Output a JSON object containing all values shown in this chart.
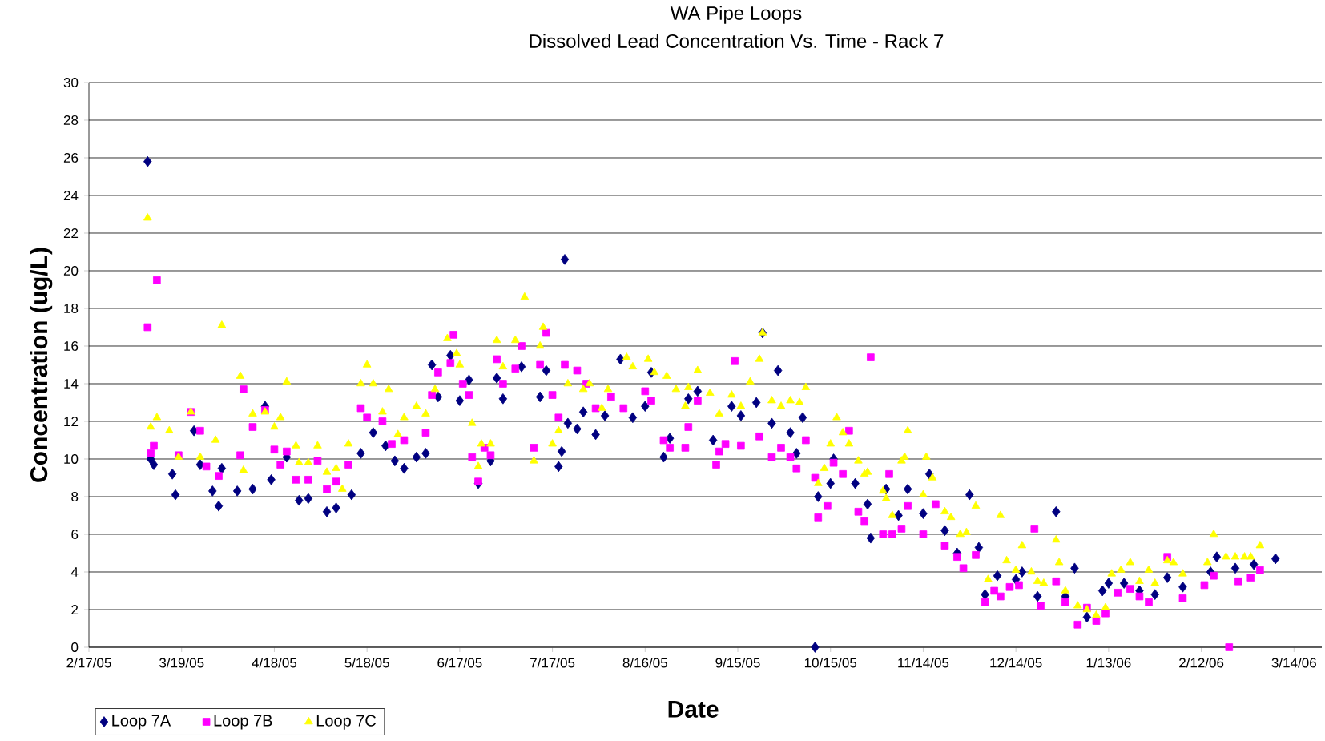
{
  "chart_data": {
    "type": "scatter",
    "title": "WA Pipe Loops",
    "subtitle": "Dissolved Lead Concentration Vs. Time - Rack 7",
    "xlabel": "Date",
    "ylabel": "Concentration (ug/L)",
    "xlim": [
      "2005-02-17",
      "2006-03-23"
    ],
    "xticks": [
      {
        "value": "2005-02-17",
        "label": "2/17/05"
      },
      {
        "value": "2005-03-19",
        "label": "3/19/05"
      },
      {
        "value": "2005-04-18",
        "label": "4/18/05"
      },
      {
        "value": "2005-05-18",
        "label": "5/18/05"
      },
      {
        "value": "2005-06-17",
        "label": "6/17/05"
      },
      {
        "value": "2005-07-17",
        "label": "7/17/05"
      },
      {
        "value": "2005-08-16",
        "label": "8/16/05"
      },
      {
        "value": "2005-09-15",
        "label": "9/15/05"
      },
      {
        "value": "2005-10-15",
        "label": "10/15/05"
      },
      {
        "value": "2005-11-14",
        "label": "11/14/05"
      },
      {
        "value": "2005-12-14",
        "label": "12/14/05"
      },
      {
        "value": "2006-01-13",
        "label": "1/13/06"
      },
      {
        "value": "2006-02-12",
        "label": "2/12/06"
      },
      {
        "value": "2006-03-14",
        "label": "3/14/06"
      }
    ],
    "ylim": [
      0,
      30
    ],
    "yticks": [
      0,
      2,
      4,
      6,
      8,
      10,
      12,
      14,
      16,
      18,
      20,
      22,
      24,
      26,
      28,
      30
    ],
    "grid": "y",
    "legend": "bottom left",
    "series": [
      {
        "name": "Loop 7A",
        "color": "#000080",
        "marker": "diamond",
        "x": [
          "2005-03-08",
          "2005-03-09",
          "2005-03-10",
          "2005-03-16",
          "2005-03-17",
          "2005-03-23",
          "2005-03-25",
          "2005-03-29",
          "2005-03-31",
          "2005-04-01",
          "2005-04-06",
          "2005-04-11",
          "2005-04-15",
          "2005-04-17",
          "2005-04-22",
          "2005-04-26",
          "2005-04-29",
          "2005-05-05",
          "2005-05-08",
          "2005-05-13",
          "2005-05-16",
          "2005-05-20",
          "2005-05-24",
          "2005-05-27",
          "2005-05-30",
          "2005-06-03",
          "2005-06-06",
          "2005-06-08",
          "2005-06-10",
          "2005-06-14",
          "2005-06-17",
          "2005-06-20",
          "2005-06-23",
          "2005-06-27",
          "2005-06-29",
          "2005-07-01",
          "2005-07-07",
          "2005-07-13",
          "2005-07-15",
          "2005-07-19",
          "2005-07-20",
          "2005-07-21",
          "2005-07-22",
          "2005-07-25",
          "2005-07-27",
          "2005-07-31",
          "2005-08-03",
          "2005-08-08",
          "2005-08-12",
          "2005-08-16",
          "2005-08-18",
          "2005-08-22",
          "2005-08-24",
          "2005-08-30",
          "2005-09-02",
          "2005-09-07",
          "2005-09-13",
          "2005-09-16",
          "2005-09-21",
          "2005-09-23",
          "2005-09-26",
          "2005-09-28",
          "2005-10-02",
          "2005-10-04",
          "2005-10-06",
          "2005-10-10",
          "2005-10-11",
          "2005-10-15",
          "2005-10-16",
          "2005-10-23",
          "2005-10-27",
          "2005-10-28",
          "2005-11-02",
          "2005-11-06",
          "2005-11-09",
          "2005-11-14",
          "2005-11-16",
          "2005-11-21",
          "2005-11-25",
          "2005-11-29",
          "2005-12-02",
          "2005-12-04",
          "2005-12-08",
          "2005-12-14",
          "2005-12-16",
          "2005-12-21",
          "2005-12-27",
          "2005-12-30",
          "2006-01-02",
          "2006-01-06",
          "2006-01-11",
          "2006-01-13",
          "2006-01-18",
          "2006-01-23",
          "2006-01-28",
          "2006-02-01",
          "2006-02-06",
          "2006-02-15",
          "2006-02-17",
          "2006-02-23",
          "2006-03-01",
          "2006-03-08"
        ],
        "values": [
          25.8,
          10.0,
          9.7,
          9.2,
          8.1,
          11.5,
          9.7,
          8.3,
          7.5,
          9.5,
          8.3,
          8.4,
          12.8,
          8.9,
          10.1,
          7.8,
          7.9,
          7.2,
          7.4,
          8.1,
          10.3,
          11.4,
          10.7,
          9.9,
          9.5,
          10.1,
          10.3,
          15.0,
          13.3,
          15.5,
          13.1,
          14.2,
          8.7,
          9.9,
          14.3,
          13.2,
          14.9,
          13.3,
          14.7,
          9.6,
          10.4,
          20.6,
          11.9,
          11.6,
          12.5,
          11.3,
          12.3,
          15.3,
          12.2,
          12.8,
          14.6,
          10.1,
          11.1,
          13.2,
          13.6,
          11.0,
          12.8,
          12.3,
          13.0,
          16.7,
          11.9,
          14.7,
          11.4,
          10.3,
          12.2,
          0,
          8.0,
          8.7,
          10.0,
          8.7,
          7.6,
          5.8,
          8.4,
          7.0,
          8.4,
          7.1,
          9.2,
          6.2,
          5.0,
          8.1,
          5.3,
          2.8,
          3.8,
          3.6,
          4.0,
          2.7,
          7.2,
          2.7,
          4.2,
          1.6,
          3.0,
          3.4,
          3.4,
          3.0,
          2.8,
          3.7,
          3.2,
          4.0,
          4.8,
          4.2,
          4.4,
          4.7
        ]
      },
      {
        "name": "Loop 7B",
        "color": "#ff00ff",
        "marker": "square",
        "x": [
          "2005-03-08",
          "2005-03-09",
          "2005-03-10",
          "2005-03-11",
          "2005-03-18",
          "2005-03-22",
          "2005-03-25",
          "2005-03-27",
          "2005-03-31",
          "2005-04-07",
          "2005-04-08",
          "2005-04-11",
          "2005-04-15",
          "2005-04-18",
          "2005-04-20",
          "2005-04-22",
          "2005-04-25",
          "2005-04-29",
          "2005-05-02",
          "2005-05-05",
          "2005-05-08",
          "2005-05-12",
          "2005-05-16",
          "2005-05-18",
          "2005-05-23",
          "2005-05-26",
          "2005-05-30",
          "2005-06-06",
          "2005-06-08",
          "2005-06-10",
          "2005-06-14",
          "2005-06-15",
          "2005-06-18",
          "2005-06-20",
          "2005-06-21",
          "2005-06-23",
          "2005-06-25",
          "2005-06-27",
          "2005-06-29",
          "2005-07-01",
          "2005-07-05",
          "2005-07-07",
          "2005-07-11",
          "2005-07-13",
          "2005-07-15",
          "2005-07-17",
          "2005-07-19",
          "2005-07-21",
          "2005-07-25",
          "2005-07-28",
          "2005-07-31",
          "2005-08-05",
          "2005-08-09",
          "2005-08-16",
          "2005-08-18",
          "2005-08-22",
          "2005-08-24",
          "2005-08-29",
          "2005-08-30",
          "2005-09-02",
          "2005-09-08",
          "2005-09-09",
          "2005-09-11",
          "2005-09-14",
          "2005-09-16",
          "2005-09-22",
          "2005-09-26",
          "2005-09-29",
          "2005-10-02",
          "2005-10-04",
          "2005-10-07",
          "2005-10-10",
          "2005-10-11",
          "2005-10-14",
          "2005-10-16",
          "2005-10-19",
          "2005-10-21",
          "2005-10-24",
          "2005-10-26",
          "2005-10-28",
          "2005-11-01",
          "2005-11-03",
          "2005-11-04",
          "2005-11-07",
          "2005-11-09",
          "2005-11-14",
          "2005-11-18",
          "2005-11-21",
          "2005-11-25",
          "2005-11-27",
          "2005-12-01",
          "2005-12-04",
          "2005-12-07",
          "2005-12-09",
          "2005-12-12",
          "2005-12-15",
          "2005-12-20",
          "2005-12-22",
          "2005-12-27",
          "2005-12-30",
          "2006-01-03",
          "2006-01-06",
          "2006-01-09",
          "2006-01-12",
          "2006-01-16",
          "2006-01-20",
          "2006-01-23",
          "2006-01-26",
          "2006-02-01",
          "2006-02-06",
          "2006-02-13",
          "2006-02-16",
          "2006-02-21",
          "2006-02-24",
          "2006-02-28",
          "2006-03-03"
        ],
        "values": [
          17.0,
          10.3,
          10.7,
          19.5,
          10.2,
          12.5,
          11.5,
          9.6,
          9.1,
          10.2,
          13.7,
          11.7,
          12.6,
          10.5,
          9.7,
          10.4,
          8.9,
          8.9,
          9.9,
          8.4,
          8.8,
          9.7,
          12.7,
          12.2,
          12.0,
          10.8,
          11.0,
          11.4,
          13.4,
          14.6,
          15.1,
          16.6,
          14.0,
          13.4,
          10.1,
          8.8,
          10.6,
          10.2,
          15.3,
          14.0,
          14.8,
          16.0,
          10.6,
          15.0,
          16.7,
          13.4,
          12.2,
          15.0,
          14.7,
          14.0,
          12.7,
          13.3,
          12.7,
          13.6,
          13.1,
          11.0,
          10.6,
          10.6,
          11.7,
          13.1,
          9.7,
          10.4,
          10.8,
          15.2,
          10.7,
          11.2,
          10.1,
          10.6,
          10.1,
          9.5,
          11.0,
          9.0,
          6.9,
          7.5,
          9.8,
          9.2,
          11.5,
          7.2,
          6.7,
          15.4,
          6.0,
          9.2,
          6.0,
          6.3,
          7.5,
          6.0,
          7.6,
          5.4,
          4.8,
          4.2,
          4.9,
          2.4,
          3.0,
          2.7,
          3.2,
          3.3,
          6.3,
          2.2,
          3.5,
          2.4,
          1.2,
          2.1,
          1.4,
          1.8,
          2.9,
          3.1,
          2.7,
          2.4,
          4.8,
          2.6,
          3.3,
          3.8,
          0,
          3.5,
          3.7,
          4.1
        ]
      },
      {
        "name": "Loop 7C",
        "color": "#ffff00",
        "marker": "triangle",
        "x": [
          "2005-03-08",
          "2005-03-09",
          "2005-03-11",
          "2005-03-15",
          "2005-03-18",
          "2005-03-22",
          "2005-03-25",
          "2005-03-30",
          "2005-04-01",
          "2005-04-07",
          "2005-04-08",
          "2005-04-11",
          "2005-04-15",
          "2005-04-18",
          "2005-04-20",
          "2005-04-22",
          "2005-04-25",
          "2005-04-26",
          "2005-04-29",
          "2005-05-02",
          "2005-05-05",
          "2005-05-08",
          "2005-05-10",
          "2005-05-12",
          "2005-05-16",
          "2005-05-18",
          "2005-05-20",
          "2005-05-23",
          "2005-05-25",
          "2005-05-28",
          "2005-05-30",
          "2005-06-03",
          "2005-06-06",
          "2005-06-09",
          "2005-06-13",
          "2005-06-16",
          "2005-06-17",
          "2005-06-21",
          "2005-06-23",
          "2005-06-24",
          "2005-06-27",
          "2005-06-29",
          "2005-07-01",
          "2005-07-05",
          "2005-07-08",
          "2005-07-11",
          "2005-07-13",
          "2005-07-14",
          "2005-07-17",
          "2005-07-19",
          "2005-07-22",
          "2005-07-27",
          "2005-07-29",
          "2005-08-02",
          "2005-08-04",
          "2005-08-10",
          "2005-08-12",
          "2005-08-17",
          "2005-08-19",
          "2005-08-23",
          "2005-08-26",
          "2005-08-29",
          "2005-08-30",
          "2005-09-02",
          "2005-09-06",
          "2005-09-09",
          "2005-09-13",
          "2005-09-16",
          "2005-09-19",
          "2005-09-22",
          "2005-09-23",
          "2005-09-26",
          "2005-09-29",
          "2005-10-02",
          "2005-10-05",
          "2005-10-07",
          "2005-10-11",
          "2005-10-13",
          "2005-10-15",
          "2005-10-17",
          "2005-10-19",
          "2005-10-21",
          "2005-10-24",
          "2005-10-26",
          "2005-10-27",
          "2005-11-01",
          "2005-11-02",
          "2005-11-04",
          "2005-11-07",
          "2005-11-08",
          "2005-11-09",
          "2005-11-14",
          "2005-11-15",
          "2005-11-17",
          "2005-11-21",
          "2005-11-23",
          "2005-11-26",
          "2005-11-28",
          "2005-12-01",
          "2005-12-05",
          "2005-12-09",
          "2005-12-11",
          "2005-12-14",
          "2005-12-16",
          "2005-12-19",
          "2005-12-21",
          "2005-12-23",
          "2005-12-27",
          "2005-12-28",
          "2005-12-30",
          "2006-01-03",
          "2006-01-06",
          "2006-01-09",
          "2006-01-12",
          "2006-01-14",
          "2006-01-17",
          "2006-01-20",
          "2006-01-23",
          "2006-01-26",
          "2006-01-28",
          "2006-02-01",
          "2006-02-03",
          "2006-02-06",
          "2006-02-14",
          "2006-02-16",
          "2006-02-20",
          "2006-02-23",
          "2006-02-26",
          "2006-02-28",
          "2006-03-03"
        ],
        "values": [
          22.8,
          11.7,
          12.2,
          11.5,
          10.1,
          12.5,
          10.1,
          11.0,
          17.1,
          14.4,
          9.4,
          12.4,
          12.5,
          11.7,
          12.2,
          14.1,
          10.7,
          9.8,
          9.8,
          10.7,
          9.3,
          9.5,
          8.4,
          10.8,
          14.0,
          15.0,
          14.0,
          12.5,
          13.7,
          11.3,
          12.2,
          12.8,
          12.4,
          13.7,
          16.4,
          15.6,
          15.0,
          11.9,
          9.6,
          10.8,
          10.8,
          16.3,
          14.9,
          16.3,
          18.6,
          9.9,
          16.0,
          17.0,
          10.8,
          11.5,
          14.0,
          13.7,
          14.0,
          12.7,
          13.7,
          15.4,
          14.9,
          15.3,
          14.6,
          14.4,
          13.7,
          12.8,
          13.8,
          14.7,
          13.5,
          12.4,
          13.4,
          12.8,
          14.1,
          15.3,
          16.7,
          13.1,
          12.8,
          13.1,
          13.0,
          13.8,
          8.7,
          9.5,
          10.8,
          12.2,
          11.4,
          10.8,
          9.9,
          9.2,
          9.3,
          8.3,
          7.9,
          7.0,
          9.9,
          10.1,
          11.5,
          8.1,
          10.1,
          9.0,
          7.2,
          6.9,
          6.0,
          6.1,
          7.5,
          3.6,
          7.0,
          4.6,
          4.1,
          5.4,
          4.0,
          3.5,
          3.4,
          5.7,
          4.5,
          3.0,
          2.2,
          2.0,
          1.7,
          2.1,
          3.9,
          4.1,
          4.5,
          3.5,
          4.1,
          3.4,
          4.6,
          4.5,
          3.9,
          4.5,
          6.0,
          4.8,
          4.8,
          4.8,
          4.8,
          5.4
        ]
      }
    ]
  }
}
